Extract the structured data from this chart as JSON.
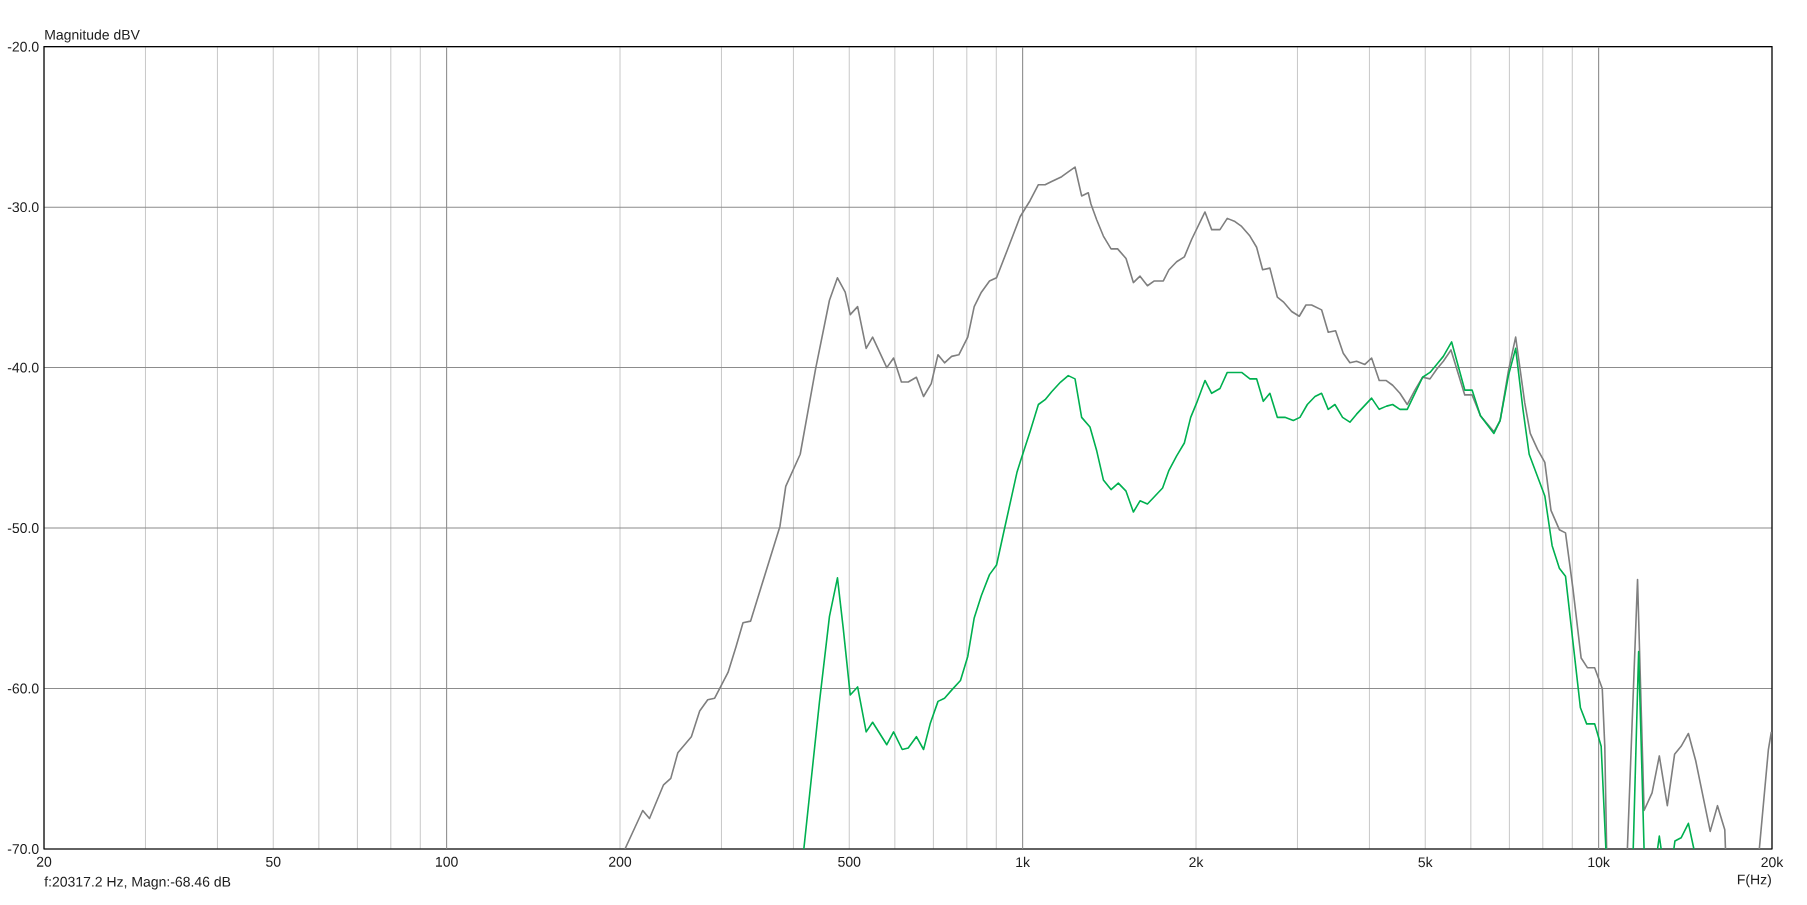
{
  "chart_data": {
    "type": "line",
    "xlabel": "F(Hz)",
    "ylabel": "Magnitude dBV",
    "annotations": [
      "f:20317.2 Hz, Magn:-68.46 dB"
    ],
    "log": "x",
    "grid": true,
    "xlim": [
      20,
      20000
    ],
    "ylim": [
      -70,
      -20
    ],
    "xticks": [
      20,
      {
        "value": 30,
        "label": null
      },
      {
        "value": 40,
        "label": null
      },
      50,
      {
        "value": 60,
        "label": null
      },
      {
        "value": 70,
        "label": null
      },
      {
        "value": 80,
        "label": null
      },
      {
        "value": 90,
        "label": null
      },
      100,
      200,
      {
        "value": 300,
        "label": null
      },
      {
        "value": 400,
        "label": null
      },
      500,
      {
        "value": 600,
        "label": null
      },
      {
        "value": 700,
        "label": null
      },
      {
        "value": 800,
        "label": null
      },
      {
        "value": 900,
        "label": null
      },
      {
        "value": 1000,
        "label": "1k"
      },
      {
        "value": 2000,
        "label": "2k"
      },
      {
        "value": 3000,
        "label": null
      },
      {
        "value": 4000,
        "label": null
      },
      {
        "value": 5000,
        "label": "5k"
      },
      {
        "value": 6000,
        "label": null
      },
      {
        "value": 7000,
        "label": null
      },
      {
        "value": 8000,
        "label": null
      },
      {
        "value": 9000,
        "label": null
      },
      {
        "value": 10000,
        "label": "10k"
      },
      {
        "value": 20000,
        "label": "20k"
      }
    ],
    "yticks": [
      {
        "value": -70,
        "label": "-70.0"
      },
      {
        "value": -60,
        "label": "-60.0"
      },
      {
        "value": -50,
        "label": "-50.0"
      },
      {
        "value": -40,
        "label": "-40.0"
      },
      {
        "value": -30,
        "label": "-30.0"
      },
      {
        "value": -20,
        "label": "-20.0"
      }
    ],
    "series": [
      {
        "color": "#7f7f7f",
        "x": [
          204,
          219,
          225,
          238,
          245,
          252,
          266,
          275,
          284,
          292,
          308,
          318,
          327,
          337,
          379,
          388,
          411,
          437,
          462,
          477,
          492,
          502,
          517,
          535,
          549,
          581,
          597,
          616,
          633,
          654,
          673,
          694,
          713,
          732,
          753,
          775,
          803,
          824,
          848,
          876,
          901,
          940,
          990,
          1030,
          1065,
          1094,
          1123,
          1169,
          1200,
          1233,
          1266,
          1300,
          1314,
          1345,
          1381,
          1424,
          1462,
          1512,
          1557,
          1599,
          1647,
          1693,
          1755,
          1795,
          1851,
          1909,
          1966,
          2073,
          2129,
          2201,
          2266,
          2337,
          2400,
          2481,
          2548,
          2610,
          2687,
          2768,
          2835,
          2931,
          3022,
          3104,
          3175,
          3304,
          3393,
          3494,
          3603,
          3700,
          3800,
          3929,
          4035,
          4160,
          4273,
          4389,
          4519,
          4653,
          4798,
          4948,
          5096,
          5234,
          5375,
          5542,
          5856,
          6030,
          6235,
          6580,
          6745,
          6973,
          7178,
          7444,
          7609,
          7834,
          8065,
          8266,
          8547,
          8760,
          9019,
          9325,
          9559,
          9842,
          10146,
          10249,
          10325,
          10800,
          11218,
          11683,
          11992,
          12381,
          12746,
          13160,
          13548,
          13907,
          14318,
          14742,
          15622,
          16083,
          16558,
          16607,
          17800,
          19011,
          19716,
          19950
        ],
        "values": [
          -70.0,
          -67.6,
          -68.1,
          -66.0,
          -65.6,
          -64.0,
          -63.0,
          -61.4,
          -60.7,
          -60.6,
          -59.0,
          -57.4,
          -55.9,
          -55.8,
          -49.9,
          -47.4,
          -45.4,
          -40.1,
          -35.8,
          -34.4,
          -35.3,
          -36.7,
          -36.2,
          -38.8,
          -38.1,
          -40.0,
          -39.4,
          -40.9,
          -40.9,
          -40.6,
          -41.8,
          -41.0,
          -39.2,
          -39.7,
          -39.3,
          -39.2,
          -38.1,
          -36.2,
          -35.3,
          -34.6,
          -34.4,
          -32.7,
          -30.6,
          -29.6,
          -28.6,
          -28.6,
          -28.4,
          -28.1,
          -27.8,
          -27.5,
          -29.3,
          -29.1,
          -29.8,
          -30.8,
          -31.8,
          -32.6,
          -32.6,
          -33.2,
          -34.7,
          -34.3,
          -34.9,
          -34.6,
          -34.6,
          -33.9,
          -33.4,
          -33.1,
          -32.0,
          -30.3,
          -31.4,
          -31.4,
          -30.7,
          -30.9,
          -31.2,
          -31.8,
          -32.5,
          -33.9,
          -33.8,
          -35.6,
          -35.9,
          -36.5,
          -36.8,
          -36.1,
          -36.1,
          -36.4,
          -37.8,
          -37.7,
          -39.1,
          -39.7,
          -39.6,
          -39.8,
          -39.4,
          -40.8,
          -40.8,
          -41.1,
          -41.6,
          -42.3,
          -41.4,
          -40.6,
          -40.7,
          -40.1,
          -39.6,
          -38.9,
          -41.7,
          -41.7,
          -43.0,
          -44.0,
          -43.3,
          -40.2,
          -38.1,
          -42.2,
          -44.1,
          -45.1,
          -45.9,
          -48.9,
          -50.1,
          -50.3,
          -53.7,
          -58.1,
          -58.7,
          -58.7,
          -60.0,
          -63.6,
          -70.0,
          null,
          -70.0,
          -53.2,
          -67.6,
          -66.5,
          -64.2,
          -67.3,
          -64.1,
          -63.6,
          -62.8,
          -64.5,
          -68.9,
          -67.3,
          -68.8,
          -70.0,
          null,
          -70.0,
          -63.8,
          -62.7
        ]
      },
      {
        "color": "#00b050",
        "x": [
          417,
          444,
          462,
          477,
          488,
          502,
          517,
          535,
          549,
          581,
          597,
          618,
          633,
          654,
          673,
          691,
          713,
          732,
          753,
          780,
          803,
          824,
          848,
          876,
          901,
          928,
          978,
          990,
          1030,
          1065,
          1094,
          1123,
          1164,
          1200,
          1233,
          1266,
          1309,
          1345,
          1381,
          1424,
          1466,
          1512,
          1557,
          1599,
          1647,
          1698,
          1750,
          1795,
          1851,
          1909,
          1958,
          2005,
          2073,
          2129,
          2201,
          2266,
          2337,
          2400,
          2481,
          2548,
          2617,
          2687,
          2768,
          2853,
          2951,
          3030,
          3121,
          3218,
          3304,
          3393,
          3485,
          3593,
          3700,
          3800,
          4035,
          4160,
          4284,
          4389,
          4519,
          4653,
          4798,
          4948,
          5096,
          5234,
          5375,
          5557,
          5856,
          6030,
          6235,
          6580,
          6745,
          6973,
          7178,
          7391,
          7576,
          8065,
          8304,
          8547,
          8760,
          9298,
          9532,
          9842,
          10102,
          10295,
          10900,
          11483,
          11734,
          11992,
          12300,
          12656,
          12746,
          12840,
          13200,
          13508,
          13567,
          13907,
          14318,
          14635
        ],
        "values": [
          -70.0,
          -60.8,
          -55.5,
          -53.1,
          -56.2,
          -60.4,
          -59.9,
          -62.7,
          -62.1,
          -63.5,
          -62.7,
          -63.8,
          -63.7,
          -63.0,
          -63.8,
          -62.2,
          -60.8,
          -60.6,
          -60.1,
          -59.5,
          -58.0,
          -55.6,
          -54.2,
          -52.9,
          -52.3,
          -50.2,
          -46.5,
          -45.9,
          -44.0,
          -42.3,
          -42.0,
          -41.5,
          -40.9,
          -40.5,
          -40.7,
          -43.1,
          -43.7,
          -45.2,
          -47.0,
          -47.6,
          -47.2,
          -47.7,
          -49.0,
          -48.3,
          -48.5,
          -48.0,
          -47.5,
          -46.4,
          -45.5,
          -44.7,
          -43.1,
          -42.2,
          -40.8,
          -41.6,
          -41.3,
          -40.3,
          -40.3,
          -40.3,
          -40.7,
          -40.7,
          -42.1,
          -41.6,
          -43.1,
          -43.1,
          -43.3,
          -43.1,
          -42.3,
          -41.8,
          -41.6,
          -42.6,
          -42.3,
          -43.1,
          -43.4,
          -42.9,
          -41.9,
          -42.6,
          -42.4,
          -42.3,
          -42.6,
          -42.6,
          -41.6,
          -40.6,
          -40.3,
          -39.8,
          -39.3,
          -38.4,
          -41.4,
          -41.4,
          -43.0,
          -44.1,
          -43.3,
          -40.5,
          -38.8,
          -42.6,
          -45.4,
          -48.0,
          -51.1,
          -52.5,
          -53.0,
          -61.2,
          -62.2,
          -62.2,
          -63.6,
          -70.0,
          null,
          -70.0,
          -57.7,
          -70.0,
          null,
          -70.0,
          -69.2,
          -70.0,
          null,
          -70.0,
          -69.5,
          -69.3,
          -68.4,
          -70.0
        ]
      }
    ]
  }
}
